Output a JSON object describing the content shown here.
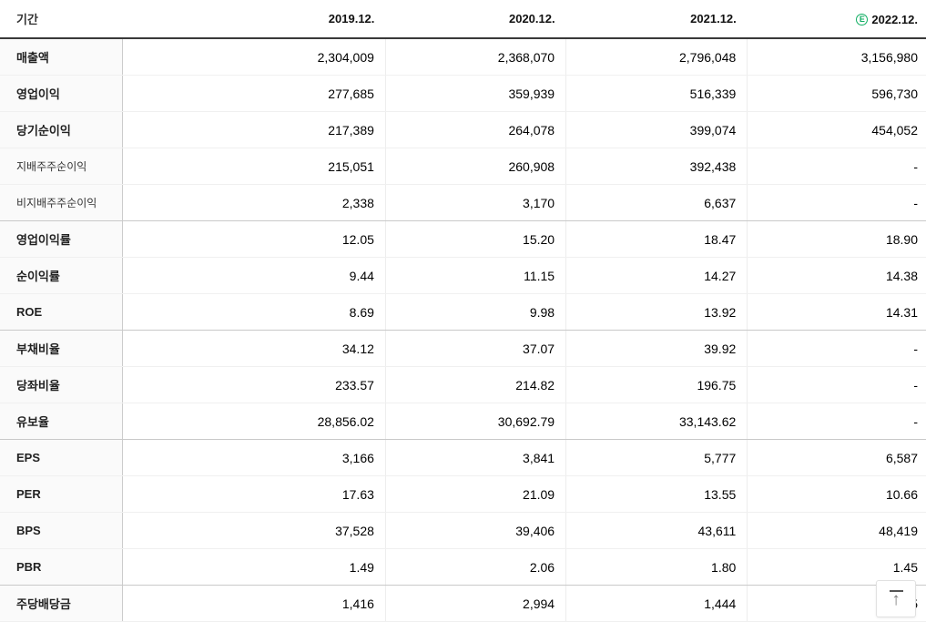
{
  "table": {
    "header": {
      "period_label": "기간",
      "columns": [
        "2019.12.",
        "2020.12.",
        "2021.12.",
        "2022.12."
      ],
      "estimate_badge": "E"
    },
    "rows": [
      {
        "label": "매출액",
        "type": "main",
        "group_end": false,
        "values": [
          "2,304,009",
          "2,368,070",
          "2,796,048",
          "3,156,980"
        ]
      },
      {
        "label": "영업이익",
        "type": "main",
        "group_end": false,
        "values": [
          "277,685",
          "359,939",
          "516,339",
          "596,730"
        ]
      },
      {
        "label": "당기순이익",
        "type": "main",
        "group_end": false,
        "values": [
          "217,389",
          "264,078",
          "399,074",
          "454,052"
        ]
      },
      {
        "label": "지배주주순이익",
        "type": "sub",
        "group_end": false,
        "values": [
          "215,051",
          "260,908",
          "392,438",
          "-"
        ]
      },
      {
        "label": "비지배주주순이익",
        "type": "sub",
        "group_end": true,
        "values": [
          "2,338",
          "3,170",
          "6,637",
          "-"
        ]
      },
      {
        "label": "영업이익률",
        "type": "main",
        "group_end": false,
        "values": [
          "12.05",
          "15.20",
          "18.47",
          "18.90"
        ]
      },
      {
        "label": "순이익률",
        "type": "main",
        "group_end": false,
        "values": [
          "9.44",
          "11.15",
          "14.27",
          "14.38"
        ]
      },
      {
        "label": "ROE",
        "type": "main",
        "group_end": true,
        "values": [
          "8.69",
          "9.98",
          "13.92",
          "14.31"
        ]
      },
      {
        "label": "부채비율",
        "type": "main",
        "group_end": false,
        "values": [
          "34.12",
          "37.07",
          "39.92",
          "-"
        ]
      },
      {
        "label": "당좌비율",
        "type": "main",
        "group_end": false,
        "values": [
          "233.57",
          "214.82",
          "196.75",
          "-"
        ]
      },
      {
        "label": "유보율",
        "type": "main",
        "group_end": true,
        "values": [
          "28,856.02",
          "30,692.79",
          "33,143.62",
          "-"
        ]
      },
      {
        "label": "EPS",
        "type": "main",
        "group_end": false,
        "values": [
          "3,166",
          "3,841",
          "5,777",
          "6,587"
        ]
      },
      {
        "label": "PER",
        "type": "main",
        "group_end": false,
        "values": [
          "17.63",
          "21.09",
          "13.55",
          "10.66"
        ]
      },
      {
        "label": "BPS",
        "type": "main",
        "group_end": false,
        "values": [
          "37,528",
          "39,406",
          "43,611",
          "48,419"
        ]
      },
      {
        "label": "PBR",
        "type": "main",
        "group_end": true,
        "values": [
          "1.49",
          "2.06",
          "1.80",
          "1.45"
        ]
      },
      {
        "label": "주당배당금",
        "type": "main",
        "group_end": false,
        "values": [
          "1,416",
          "2,994",
          "1,444",
          "1,445"
        ]
      }
    ]
  },
  "scroll_top_button": {
    "icon": "arrow-up-to-top",
    "arrow_glyph": "↑"
  },
  "colors": {
    "estimate_green": "#0fae62",
    "header_border": "#393939",
    "group_border": "#c9c9c9",
    "row_border": "#f0f0f0",
    "label_bg": "#fafafa"
  }
}
